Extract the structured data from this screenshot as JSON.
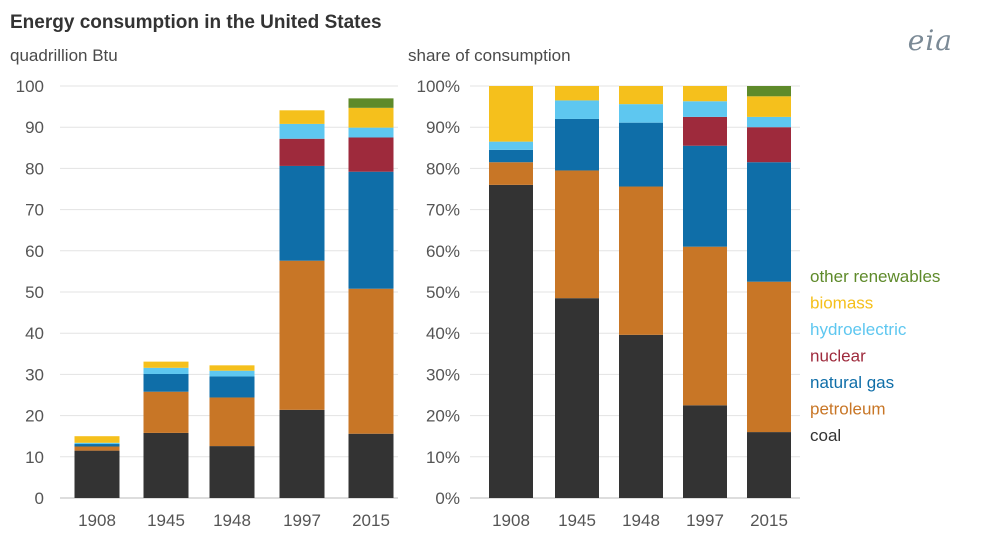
{
  "header": {
    "title": "Energy consumption in the United States",
    "logo_text": "eia"
  },
  "chart_data": [
    {
      "type": "bar",
      "stacked": true,
      "subtitle": "quadrillion Btu",
      "categories": [
        "1908",
        "1945",
        "1948",
        "1997",
        "2015"
      ],
      "ylim": [
        0,
        100
      ],
      "yticks": [
        "0",
        "10",
        "20",
        "30",
        "40",
        "50",
        "60",
        "70",
        "80",
        "90",
        "100"
      ],
      "series": [
        {
          "name": "coal",
          "color": "#333333",
          "values": [
            11.5,
            15.8,
            12.6,
            21.4,
            15.6
          ]
        },
        {
          "name": "petroleum",
          "color": "#c87626",
          "values": [
            1.0,
            10.0,
            11.8,
            36.2,
            35.2
          ]
        },
        {
          "name": "natural gas",
          "color": "#0f6ea8",
          "values": [
            0.6,
            4.3,
            5.1,
            23.0,
            28.4
          ]
        },
        {
          "name": "nuclear",
          "color": "#9e2a3c",
          "values": [
            0,
            0,
            0,
            6.6,
            8.3
          ]
        },
        {
          "name": "hydroelectric",
          "color": "#5ec7f0",
          "values": [
            0.3,
            1.5,
            1.4,
            3.6,
            2.4
          ]
        },
        {
          "name": "biomass",
          "color": "#f5c01c",
          "values": [
            1.6,
            1.5,
            1.3,
            3.3,
            4.8
          ]
        },
        {
          "name": "other renewables",
          "color": "#5e8a2a",
          "values": [
            0,
            0,
            0,
            0,
            2.3
          ]
        }
      ]
    },
    {
      "type": "bar",
      "stacked": true,
      "subtitle": "share of consumption",
      "categories": [
        "1908",
        "1945",
        "1948",
        "1997",
        "2015"
      ],
      "ylim": [
        0,
        100
      ],
      "yticks": [
        "0%",
        "10%",
        "20%",
        "30%",
        "40%",
        "50%",
        "60%",
        "70%",
        "80%",
        "90%",
        "100%"
      ],
      "series": [
        {
          "name": "coal",
          "color": "#333333",
          "values": [
            76,
            48.5,
            39.6,
            22.5,
            16
          ]
        },
        {
          "name": "petroleum",
          "color": "#c87626",
          "values": [
            5.5,
            31,
            36,
            38.5,
            36.5
          ]
        },
        {
          "name": "natural gas",
          "color": "#0f6ea8",
          "values": [
            3,
            12.5,
            15.5,
            24.5,
            29
          ]
        },
        {
          "name": "nuclear",
          "color": "#9e2a3c",
          "values": [
            0,
            0,
            0,
            7,
            8.5
          ]
        },
        {
          "name": "hydroelectric",
          "color": "#5ec7f0",
          "values": [
            2,
            4.5,
            4.5,
            3.8,
            2.5
          ]
        },
        {
          "name": "biomass",
          "color": "#f5c01c",
          "values": [
            13.5,
            3.5,
            4.4,
            3.7,
            5
          ]
        },
        {
          "name": "other renewables",
          "color": "#5e8a2a",
          "values": [
            0,
            0,
            0,
            0,
            2.5
          ]
        }
      ],
      "legend_position": "right"
    }
  ]
}
